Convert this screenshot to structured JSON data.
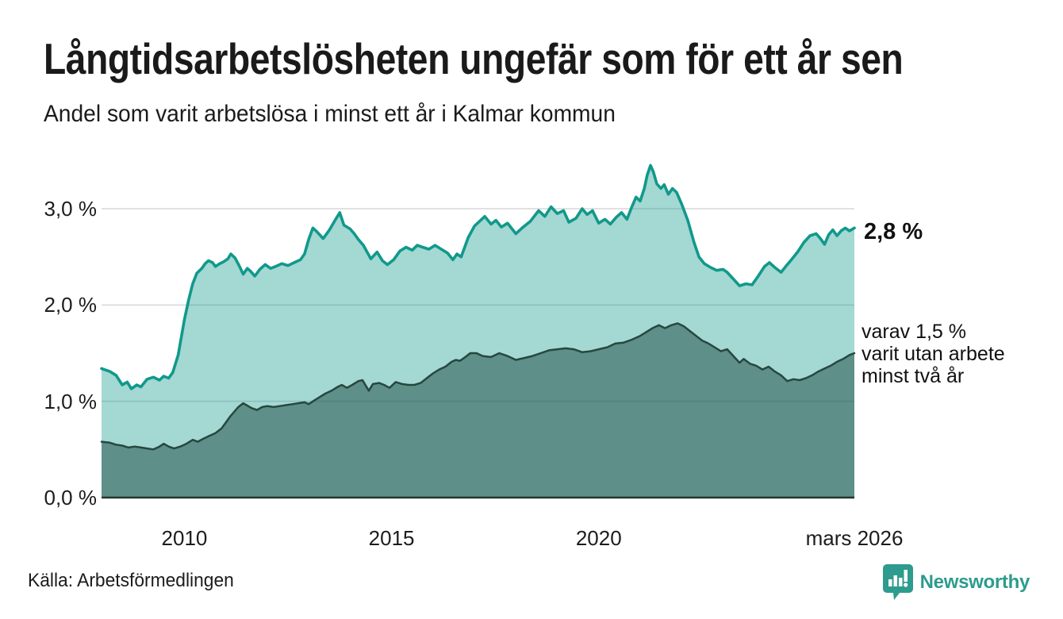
{
  "chart_data": {
    "type": "area",
    "title": "Långtidsarbetslösheten ungefär som för ett år sen",
    "subtitle": "Andel som varit arbetslösa i minst ett år i Kalmar kommun",
    "grid": true,
    "x_axis": {
      "range": [
        2008.0,
        2026.17
      ],
      "ticks": [
        {
          "t": 2010,
          "label": "2010"
        },
        {
          "t": 2015,
          "label": "2015"
        },
        {
          "t": 2020,
          "label": "2020"
        },
        {
          "t": 2026.17,
          "label": "mars 2026"
        }
      ]
    },
    "y_axis": {
      "unit": "%",
      "range": [
        0,
        3.6
      ],
      "ticks": [
        {
          "v": 0,
          "label": "0,0 %"
        },
        {
          "v": 1,
          "label": "1,0 %"
        },
        {
          "v": 2,
          "label": "2,0 %"
        },
        {
          "v": 3,
          "label": "3,0 %"
        }
      ]
    },
    "series": [
      {
        "id": "arbetslosa_minst_ett_ar",
        "label": "Andel som varit arbetslösa i minst ett år",
        "line_color": "#11998b",
        "fill_color": "rgba(17,153,139,0.38)",
        "latest_value": 2.8,
        "latest_value_label": "2,8 %",
        "points": [
          [
            2008.0,
            1.34
          ],
          [
            2008.2,
            1.31
          ],
          [
            2008.35,
            1.27
          ],
          [
            2008.5,
            1.17
          ],
          [
            2008.62,
            1.2
          ],
          [
            2008.72,
            1.13
          ],
          [
            2008.85,
            1.17
          ],
          [
            2008.95,
            1.15
          ],
          [
            2009.1,
            1.23
          ],
          [
            2009.25,
            1.25
          ],
          [
            2009.4,
            1.22
          ],
          [
            2009.5,
            1.26
          ],
          [
            2009.62,
            1.24
          ],
          [
            2009.72,
            1.3
          ],
          [
            2009.85,
            1.48
          ],
          [
            2010.0,
            1.85
          ],
          [
            2010.1,
            2.05
          ],
          [
            2010.2,
            2.22
          ],
          [
            2010.3,
            2.33
          ],
          [
            2010.42,
            2.38
          ],
          [
            2010.5,
            2.43
          ],
          [
            2010.58,
            2.46
          ],
          [
            2010.68,
            2.44
          ],
          [
            2010.75,
            2.4
          ],
          [
            2010.85,
            2.43
          ],
          [
            2010.95,
            2.45
          ],
          [
            2011.05,
            2.48
          ],
          [
            2011.12,
            2.53
          ],
          [
            2011.22,
            2.49
          ],
          [
            2011.32,
            2.41
          ],
          [
            2011.42,
            2.32
          ],
          [
            2011.52,
            2.38
          ],
          [
            2011.6,
            2.35
          ],
          [
            2011.7,
            2.3
          ],
          [
            2011.82,
            2.37
          ],
          [
            2011.95,
            2.42
          ],
          [
            2012.08,
            2.38
          ],
          [
            2012.2,
            2.4
          ],
          [
            2012.35,
            2.43
          ],
          [
            2012.5,
            2.41
          ],
          [
            2012.65,
            2.44
          ],
          [
            2012.8,
            2.47
          ],
          [
            2012.9,
            2.53
          ],
          [
            2013.0,
            2.68
          ],
          [
            2013.1,
            2.8
          ],
          [
            2013.2,
            2.76
          ],
          [
            2013.35,
            2.69
          ],
          [
            2013.5,
            2.78
          ],
          [
            2013.65,
            2.89
          ],
          [
            2013.75,
            2.96
          ],
          [
            2013.85,
            2.83
          ],
          [
            2014.0,
            2.79
          ],
          [
            2014.1,
            2.74
          ],
          [
            2014.2,
            2.68
          ],
          [
            2014.32,
            2.62
          ],
          [
            2014.5,
            2.48
          ],
          [
            2014.65,
            2.55
          ],
          [
            2014.78,
            2.46
          ],
          [
            2014.9,
            2.42
          ],
          [
            2015.05,
            2.47
          ],
          [
            2015.2,
            2.56
          ],
          [
            2015.35,
            2.6
          ],
          [
            2015.5,
            2.57
          ],
          [
            2015.62,
            2.62
          ],
          [
            2015.75,
            2.6
          ],
          [
            2015.9,
            2.58
          ],
          [
            2016.05,
            2.62
          ],
          [
            2016.2,
            2.58
          ],
          [
            2016.35,
            2.54
          ],
          [
            2016.48,
            2.47
          ],
          [
            2016.58,
            2.53
          ],
          [
            2016.68,
            2.5
          ],
          [
            2016.85,
            2.7
          ],
          [
            2017.0,
            2.82
          ],
          [
            2017.15,
            2.88
          ],
          [
            2017.25,
            2.92
          ],
          [
            2017.4,
            2.84
          ],
          [
            2017.52,
            2.88
          ],
          [
            2017.65,
            2.81
          ],
          [
            2017.8,
            2.85
          ],
          [
            2018.0,
            2.74
          ],
          [
            2018.15,
            2.8
          ],
          [
            2018.35,
            2.87
          ],
          [
            2018.55,
            2.98
          ],
          [
            2018.7,
            2.92
          ],
          [
            2018.85,
            3.02
          ],
          [
            2019.0,
            2.95
          ],
          [
            2019.15,
            2.98
          ],
          [
            2019.28,
            2.86
          ],
          [
            2019.45,
            2.9
          ],
          [
            2019.6,
            3.0
          ],
          [
            2019.72,
            2.94
          ],
          [
            2019.85,
            2.98
          ],
          [
            2020.0,
            2.85
          ],
          [
            2020.15,
            2.89
          ],
          [
            2020.28,
            2.84
          ],
          [
            2020.42,
            2.91
          ],
          [
            2020.55,
            2.96
          ],
          [
            2020.68,
            2.89
          ],
          [
            2020.8,
            3.02
          ],
          [
            2020.9,
            3.12
          ],
          [
            2021.0,
            3.08
          ],
          [
            2021.1,
            3.21
          ],
          [
            2021.17,
            3.35
          ],
          [
            2021.25,
            3.45
          ],
          [
            2021.32,
            3.38
          ],
          [
            2021.4,
            3.26
          ],
          [
            2021.5,
            3.21
          ],
          [
            2021.58,
            3.25
          ],
          [
            2021.68,
            3.15
          ],
          [
            2021.78,
            3.21
          ],
          [
            2021.88,
            3.17
          ],
          [
            2022.0,
            3.05
          ],
          [
            2022.15,
            2.88
          ],
          [
            2022.3,
            2.65
          ],
          [
            2022.42,
            2.5
          ],
          [
            2022.55,
            2.43
          ],
          [
            2022.7,
            2.39
          ],
          [
            2022.85,
            2.36
          ],
          [
            2023.0,
            2.37
          ],
          [
            2023.1,
            2.34
          ],
          [
            2023.25,
            2.27
          ],
          [
            2023.4,
            2.2
          ],
          [
            2023.55,
            2.22
          ],
          [
            2023.7,
            2.21
          ],
          [
            2023.85,
            2.3
          ],
          [
            2024.0,
            2.4
          ],
          [
            2024.12,
            2.44
          ],
          [
            2024.25,
            2.39
          ],
          [
            2024.4,
            2.34
          ],
          [
            2024.55,
            2.42
          ],
          [
            2024.65,
            2.47
          ],
          [
            2024.8,
            2.55
          ],
          [
            2024.95,
            2.65
          ],
          [
            2025.1,
            2.72
          ],
          [
            2025.25,
            2.74
          ],
          [
            2025.35,
            2.69
          ],
          [
            2025.45,
            2.63
          ],
          [
            2025.55,
            2.73
          ],
          [
            2025.65,
            2.78
          ],
          [
            2025.75,
            2.72
          ],
          [
            2025.85,
            2.77
          ],
          [
            2025.95,
            2.8
          ],
          [
            2026.05,
            2.77
          ],
          [
            2026.17,
            2.8
          ]
        ]
      },
      {
        "id": "utan_arbete_minst_tva_ar",
        "label": "varav varit utan arbete minst två år",
        "line_color": "#27473f",
        "fill_color": "rgba(31,77,69,0.52)",
        "latest_value": 1.5,
        "annotation_lines": [
          "varav 1,5 %",
          "varit utan arbete",
          "minst två år"
        ],
        "points": [
          [
            2008.0,
            0.58
          ],
          [
            2008.2,
            0.57
          ],
          [
            2008.35,
            0.55
          ],
          [
            2008.5,
            0.54
          ],
          [
            2008.65,
            0.52
          ],
          [
            2008.8,
            0.53
          ],
          [
            2008.95,
            0.52
          ],
          [
            2009.1,
            0.51
          ],
          [
            2009.25,
            0.5
          ],
          [
            2009.4,
            0.53
          ],
          [
            2009.5,
            0.56
          ],
          [
            2009.62,
            0.53
          ],
          [
            2009.75,
            0.51
          ],
          [
            2009.9,
            0.53
          ],
          [
            2010.05,
            0.56
          ],
          [
            2010.2,
            0.6
          ],
          [
            2010.32,
            0.58
          ],
          [
            2010.45,
            0.61
          ],
          [
            2010.6,
            0.64
          ],
          [
            2010.75,
            0.67
          ],
          [
            2010.9,
            0.72
          ],
          [
            2011.0,
            0.78
          ],
          [
            2011.1,
            0.84
          ],
          [
            2011.2,
            0.89
          ],
          [
            2011.3,
            0.94
          ],
          [
            2011.42,
            0.98
          ],
          [
            2011.5,
            0.96
          ],
          [
            2011.62,
            0.93
          ],
          [
            2011.75,
            0.91
          ],
          [
            2011.88,
            0.94
          ],
          [
            2012.0,
            0.95
          ],
          [
            2012.15,
            0.94
          ],
          [
            2012.3,
            0.95
          ],
          [
            2012.45,
            0.96
          ],
          [
            2012.6,
            0.97
          ],
          [
            2012.75,
            0.98
          ],
          [
            2012.9,
            0.99
          ],
          [
            2013.0,
            0.97
          ],
          [
            2013.1,
            1.0
          ],
          [
            2013.25,
            1.04
          ],
          [
            2013.4,
            1.08
          ],
          [
            2013.55,
            1.11
          ],
          [
            2013.7,
            1.15
          ],
          [
            2013.8,
            1.17
          ],
          [
            2013.92,
            1.14
          ],
          [
            2014.05,
            1.17
          ],
          [
            2014.2,
            1.21
          ],
          [
            2014.3,
            1.22
          ],
          [
            2014.45,
            1.11
          ],
          [
            2014.55,
            1.18
          ],
          [
            2014.7,
            1.19
          ],
          [
            2014.82,
            1.17
          ],
          [
            2014.95,
            1.14
          ],
          [
            2015.1,
            1.2
          ],
          [
            2015.25,
            1.18
          ],
          [
            2015.4,
            1.17
          ],
          [
            2015.55,
            1.17
          ],
          [
            2015.7,
            1.19
          ],
          [
            2015.85,
            1.24
          ],
          [
            2016.0,
            1.29
          ],
          [
            2016.15,
            1.33
          ],
          [
            2016.3,
            1.36
          ],
          [
            2016.45,
            1.41
          ],
          [
            2016.55,
            1.43
          ],
          [
            2016.65,
            1.42
          ],
          [
            2016.78,
            1.46
          ],
          [
            2016.9,
            1.5
          ],
          [
            2017.05,
            1.5
          ],
          [
            2017.2,
            1.47
          ],
          [
            2017.4,
            1.46
          ],
          [
            2017.6,
            1.5
          ],
          [
            2017.8,
            1.47
          ],
          [
            2018.0,
            1.43
          ],
          [
            2018.2,
            1.45
          ],
          [
            2018.4,
            1.47
          ],
          [
            2018.6,
            1.5
          ],
          [
            2018.8,
            1.53
          ],
          [
            2019.0,
            1.54
          ],
          [
            2019.2,
            1.55
          ],
          [
            2019.4,
            1.54
          ],
          [
            2019.6,
            1.51
          ],
          [
            2019.8,
            1.52
          ],
          [
            2020.0,
            1.54
          ],
          [
            2020.2,
            1.56
          ],
          [
            2020.4,
            1.6
          ],
          [
            2020.6,
            1.61
          ],
          [
            2020.8,
            1.64
          ],
          [
            2021.0,
            1.68
          ],
          [
            2021.15,
            1.72
          ],
          [
            2021.3,
            1.76
          ],
          [
            2021.45,
            1.79
          ],
          [
            2021.6,
            1.76
          ],
          [
            2021.75,
            1.79
          ],
          [
            2021.9,
            1.81
          ],
          [
            2022.05,
            1.78
          ],
          [
            2022.2,
            1.73
          ],
          [
            2022.35,
            1.68
          ],
          [
            2022.5,
            1.63
          ],
          [
            2022.65,
            1.6
          ],
          [
            2022.8,
            1.56
          ],
          [
            2022.95,
            1.52
          ],
          [
            2023.1,
            1.54
          ],
          [
            2023.25,
            1.47
          ],
          [
            2023.4,
            1.4
          ],
          [
            2023.5,
            1.44
          ],
          [
            2023.65,
            1.39
          ],
          [
            2023.8,
            1.37
          ],
          [
            2023.95,
            1.33
          ],
          [
            2024.1,
            1.36
          ],
          [
            2024.25,
            1.31
          ],
          [
            2024.4,
            1.27
          ],
          [
            2024.55,
            1.21
          ],
          [
            2024.7,
            1.23
          ],
          [
            2024.85,
            1.22
          ],
          [
            2025.0,
            1.24
          ],
          [
            2025.15,
            1.27
          ],
          [
            2025.3,
            1.31
          ],
          [
            2025.45,
            1.34
          ],
          [
            2025.6,
            1.37
          ],
          [
            2025.75,
            1.41
          ],
          [
            2025.9,
            1.44
          ],
          [
            2026.05,
            1.48
          ],
          [
            2026.17,
            1.5
          ]
        ]
      }
    ],
    "colors": {
      "gridline": "#d7d7d7",
      "baseline": "#22352f",
      "text": "#1c1c1c"
    }
  },
  "footer": {
    "source": "Källa: Arbetsförmedlingen",
    "brand_name": "Newsworthy",
    "brand_color": "#2d9b8e"
  }
}
